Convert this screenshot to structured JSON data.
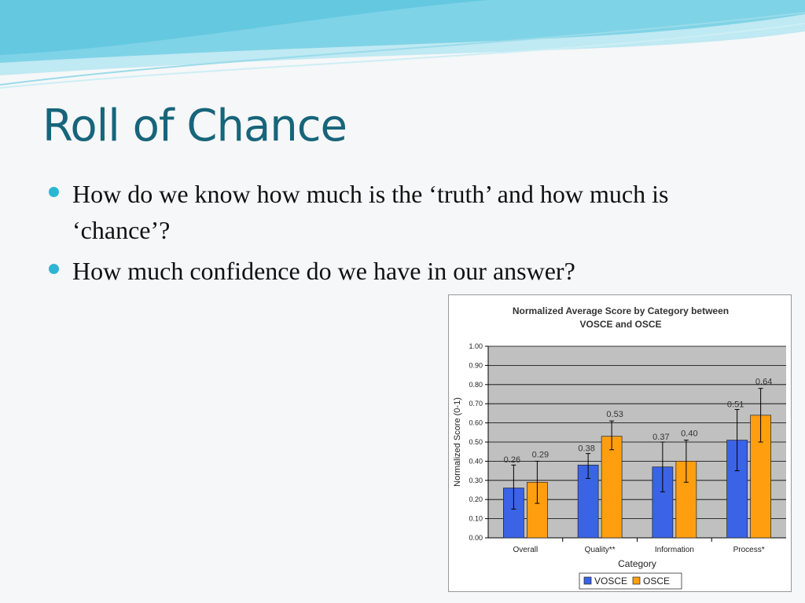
{
  "slide": {
    "title": "Roll of Chance",
    "bullets": [
      "How do we know how much is the ‘truth’ and how much is ‘chance’?",
      "How much confidence do we have in our answer?"
    ]
  },
  "theme": {
    "title_color": "#17657a",
    "bullet_color": "#2db6d3",
    "wave_color": "#7fd3e6"
  },
  "chart_data": {
    "type": "bar",
    "title": "Normalized Average Score by Category between VOSCE and OSCE",
    "xlabel": "Category",
    "ylabel": "Normalized Score (0-1)",
    "ylim": [
      0,
      1
    ],
    "yticks": [
      "0.00",
      "0.10",
      "0.20",
      "0.30",
      "0.40",
      "0.50",
      "0.60",
      "0.70",
      "0.80",
      "0.90",
      "1.00"
    ],
    "categories": [
      "Overall",
      "Quality**",
      "Information",
      "Process*"
    ],
    "series": [
      {
        "name": "VOSCE",
        "color": "#3a63e6",
        "values": [
          0.26,
          0.38,
          0.37,
          0.51
        ],
        "labels": [
          "0.26",
          "0.38",
          "0.37",
          "0.51"
        ],
        "error_low": [
          0.15,
          0.31,
          0.24,
          0.35
        ],
        "error_high": [
          0.38,
          0.44,
          0.5,
          0.67
        ]
      },
      {
        "name": "OSCE",
        "color": "#ff9f0f",
        "values": [
          0.29,
          0.53,
          0.4,
          0.64
        ],
        "labels": [
          "0.29",
          "0.53",
          "0.40",
          "0.64"
        ],
        "error_low": [
          0.18,
          0.46,
          0.29,
          0.5
        ],
        "error_high": [
          0.4,
          0.61,
          0.51,
          0.78
        ]
      }
    ],
    "grid": true,
    "legend": "bottom"
  }
}
